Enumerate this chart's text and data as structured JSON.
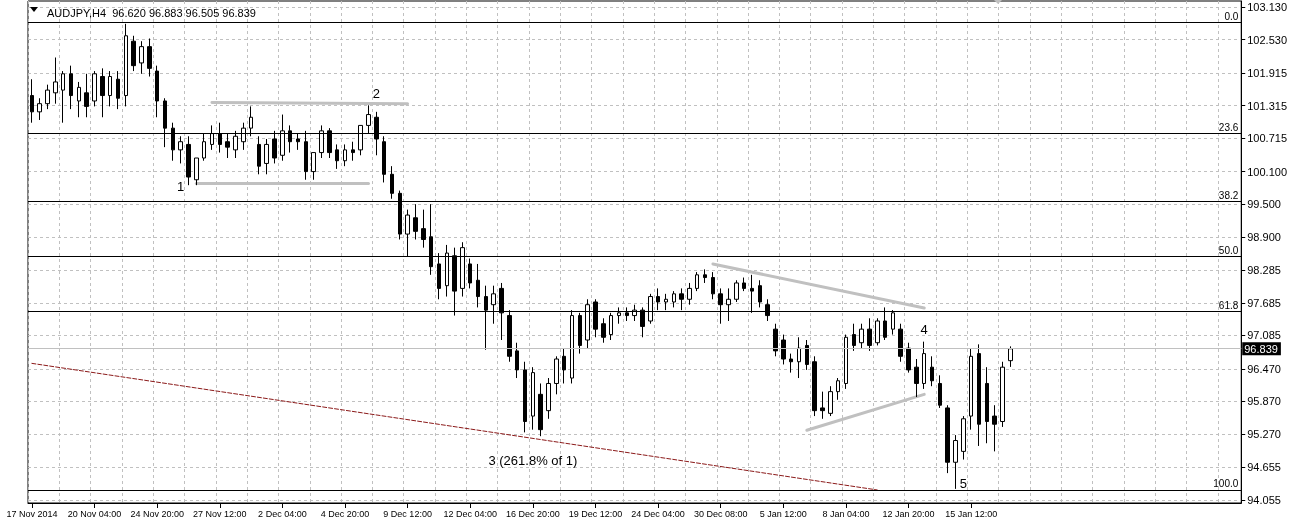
{
  "chart_data": {
    "type": "candlestick",
    "title": "AUDJPY,H4  96.620 96.883 96.505 96.839",
    "color": "#000000",
    "categories": [
      "17 Nov 2014",
      null,
      null,
      null,
      null,
      null,
      null,
      null,
      "20 Nov 04:00",
      null,
      null,
      null,
      null,
      null,
      null,
      null,
      "24 Nov 20:00",
      null,
      null,
      null,
      null,
      null,
      null,
      null,
      "27 Nov 12:00",
      null,
      null,
      null,
      null,
      null,
      null,
      null,
      "2 Dec 04:00",
      null,
      null,
      null,
      null,
      null,
      null,
      null,
      "4 Dec 20:00",
      null,
      null,
      null,
      null,
      null,
      null,
      null,
      "9 Dec 12:00",
      null,
      null,
      null,
      null,
      null,
      null,
      null,
      "12 Dec 04:00",
      null,
      null,
      null,
      null,
      null,
      null,
      null,
      "16 Dec 20:00",
      null,
      null,
      null,
      null,
      null,
      null,
      null,
      "19 Dec 12:00",
      null,
      null,
      null,
      null,
      null,
      null,
      null,
      "24 Dec 04:00",
      null,
      null,
      null,
      null,
      null,
      null,
      null,
      "30 Dec 08:00",
      null,
      null,
      null,
      null,
      null,
      null,
      null,
      "5 Jan 12:00",
      null,
      null,
      null,
      null,
      null,
      null,
      null,
      "8 Jan 04:00",
      null,
      null,
      null,
      null,
      null,
      null,
      null,
      "12 Jan 20:00",
      null,
      null,
      null,
      null,
      null,
      null,
      null,
      "15 Jan 12:00",
      null,
      null,
      null,
      null,
      null,
      null,
      null,
      null,
      null,
      null,
      null,
      null,
      null,
      null,
      null,
      null,
      null,
      null,
      null,
      null,
      null,
      null,
      null,
      null,
      null,
      null,
      null,
      null,
      null,
      null,
      null,
      null,
      null,
      null
    ],
    "ohlc": [
      [
        101.5,
        101.8,
        101.0,
        101.2
      ],
      [
        101.2,
        101.45,
        101.05,
        101.35
      ],
      [
        101.35,
        101.7,
        101.25,
        101.6
      ],
      [
        101.55,
        102.2,
        101.35,
        101.75
      ],
      [
        101.6,
        101.95,
        101.0,
        101.9
      ],
      [
        101.9,
        102.05,
        101.25,
        101.5
      ],
      [
        101.4,
        101.75,
        101.1,
        101.65
      ],
      [
        101.55,
        101.9,
        101.1,
        101.3
      ],
      [
        101.4,
        101.95,
        101.3,
        101.9
      ],
      [
        101.85,
        102.0,
        101.1,
        101.5
      ],
      [
        101.5,
        101.95,
        101.3,
        101.85
      ],
      [
        101.8,
        101.95,
        101.25,
        101.45
      ],
      [
        101.5,
        102.82,
        101.3,
        102.6
      ],
      [
        102.5,
        102.6,
        101.95,
        102.05
      ],
      [
        102.1,
        102.5,
        101.9,
        102.4
      ],
      [
        102.4,
        102.55,
        101.85,
        102.0
      ],
      [
        101.95,
        102.05,
        101.1,
        101.4
      ],
      [
        101.4,
        101.45,
        100.55,
        100.9
      ],
      [
        100.9,
        101.0,
        100.3,
        100.5
      ],
      [
        100.5,
        100.75,
        100.25,
        100.65
      ],
      [
        100.6,
        100.75,
        99.85,
        100.0
      ],
      [
        99.95,
        100.35,
        99.85,
        100.35
      ],
      [
        100.35,
        100.8,
        100.3,
        100.65
      ],
      [
        100.6,
        100.95,
        100.5,
        100.8
      ],
      [
        100.8,
        101.0,
        100.45,
        100.6
      ],
      [
        100.65,
        100.8,
        100.35,
        100.55
      ],
      [
        100.5,
        100.85,
        100.35,
        100.75
      ],
      [
        100.65,
        101.0,
        100.5,
        100.9
      ],
      [
        100.9,
        101.3,
        100.75,
        101.1
      ],
      [
        100.6,
        100.75,
        100.05,
        100.2
      ],
      [
        100.25,
        100.7,
        100.05,
        100.6
      ],
      [
        100.7,
        100.85,
        100.25,
        100.35
      ],
      [
        100.4,
        101.15,
        100.3,
        100.85
      ],
      [
        100.85,
        100.95,
        100.45,
        100.65
      ],
      [
        100.7,
        100.8,
        100.5,
        100.65
      ],
      [
        100.65,
        100.85,
        99.95,
        100.1
      ],
      [
        100.1,
        100.45,
        99.95,
        100.45
      ],
      [
        100.45,
        100.95,
        100.35,
        100.85
      ],
      [
        100.85,
        100.9,
        100.35,
        100.45
      ],
      [
        100.5,
        100.6,
        100.15,
        100.3
      ],
      [
        100.3,
        100.6,
        100.2,
        100.5
      ],
      [
        100.5,
        100.65,
        100.3,
        100.45
      ],
      [
        100.5,
        100.95,
        100.4,
        100.95
      ],
      [
        100.95,
        101.32,
        100.8,
        101.15
      ],
      [
        101.1,
        101.2,
        100.4,
        100.7
      ],
      [
        100.65,
        100.75,
        99.9,
        100.05
      ],
      [
        100.05,
        100.2,
        99.6,
        99.7
      ],
      [
        99.7,
        99.75,
        98.85,
        98.95
      ],
      [
        98.95,
        99.4,
        98.53,
        99.3
      ],
      [
        99.25,
        99.5,
        98.85,
        99.0
      ],
      [
        99.05,
        99.4,
        98.7,
        98.85
      ],
      [
        98.9,
        99.5,
        98.2,
        98.35
      ],
      [
        98.4,
        98.6,
        97.75,
        97.95
      ],
      [
        98.0,
        98.75,
        97.8,
        98.6
      ],
      [
        98.55,
        98.7,
        97.45,
        97.9
      ],
      [
        97.95,
        98.8,
        97.8,
        98.7
      ],
      [
        98.4,
        98.5,
        97.95,
        98.05
      ],
      [
        98.1,
        98.4,
        97.6,
        97.8
      ],
      [
        97.8,
        98.0,
        96.82,
        97.55
      ],
      [
        97.65,
        98.0,
        97.3,
        97.85
      ],
      [
        97.95,
        98.05,
        97.0,
        97.5
      ],
      [
        97.45,
        97.55,
        96.6,
        96.7
      ],
      [
        96.8,
        96.95,
        96.3,
        96.45
      ],
      [
        96.45,
        96.6,
        95.3,
        95.5
      ],
      [
        95.6,
        96.5,
        95.35,
        96.4
      ],
      [
        96.0,
        96.2,
        95.23,
        95.35
      ],
      [
        95.7,
        96.3,
        95.55,
        96.2
      ],
      [
        96.2,
        96.7,
        96.0,
        96.65
      ],
      [
        96.7,
        96.85,
        96.2,
        96.45
      ],
      [
        96.3,
        97.55,
        96.2,
        97.45
      ],
      [
        97.45,
        97.5,
        96.75,
        96.9
      ],
      [
        97.0,
        97.75,
        96.85,
        97.65
      ],
      [
        97.7,
        97.75,
        97.05,
        97.2
      ],
      [
        97.3,
        97.4,
        96.95,
        97.05
      ],
      [
        97.1,
        97.5,
        97.0,
        97.45
      ],
      [
        97.45,
        97.6,
        97.3,
        97.5
      ],
      [
        97.5,
        97.6,
        97.35,
        97.45
      ],
      [
        97.45,
        97.65,
        97.35,
        97.55
      ],
      [
        97.55,
        97.6,
        97.05,
        97.25
      ],
      [
        97.35,
        97.85,
        97.3,
        97.8
      ],
      [
        97.8,
        97.95,
        97.55,
        97.7
      ],
      [
        97.7,
        97.85,
        97.55,
        97.75
      ],
      [
        97.7,
        97.9,
        97.6,
        97.85
      ],
      [
        97.85,
        97.95,
        97.55,
        97.75
      ],
      [
        97.75,
        98.05,
        97.65,
        97.95
      ],
      [
        97.95,
        98.25,
        97.9,
        98.2
      ],
      [
        98.2,
        98.3,
        98.05,
        98.15
      ],
      [
        98.15,
        98.25,
        97.75,
        97.85
      ],
      [
        97.85,
        97.95,
        97.3,
        97.65
      ],
      [
        97.65,
        97.95,
        97.35,
        97.75
      ],
      [
        97.75,
        98.1,
        97.7,
        98.05
      ],
      [
        98.05,
        98.15,
        97.9,
        97.95
      ],
      [
        97.95,
        98.2,
        97.5,
        97.9
      ],
      [
        98.0,
        98.1,
        97.6,
        97.7
      ],
      [
        97.65,
        97.75,
        97.35,
        97.45
      ],
      [
        97.2,
        97.3,
        96.7,
        96.8
      ],
      [
        97.0,
        97.1,
        96.55,
        96.65
      ],
      [
        96.65,
        96.75,
        96.4,
        96.6
      ],
      [
        96.6,
        97.05,
        96.3,
        96.85
      ],
      [
        96.9,
        97.0,
        96.45,
        96.55
      ],
      [
        96.6,
        96.7,
        95.6,
        95.7
      ],
      [
        95.75,
        96.05,
        95.55,
        95.7
      ],
      [
        95.65,
        96.15,
        95.6,
        96.05
      ],
      [
        96.05,
        96.3,
        95.9,
        96.25
      ],
      [
        96.2,
        97.1,
        96.1,
        97.05
      ],
      [
        97.1,
        97.3,
        96.8,
        96.9
      ],
      [
        96.95,
        97.3,
        96.85,
        97.2
      ],
      [
        97.2,
        97.4,
        96.8,
        96.9
      ],
      [
        96.95,
        97.4,
        96.9,
        97.35
      ],
      [
        97.35,
        97.6,
        97.0,
        97.05
      ],
      [
        97.2,
        97.55,
        97.1,
        97.5
      ],
      [
        97.2,
        97.3,
        96.6,
        96.7
      ],
      [
        96.85,
        96.95,
        96.4,
        96.45
      ],
      [
        96.5,
        96.65,
        95.95,
        96.2
      ],
      [
        96.2,
        96.97,
        96.1,
        96.75
      ],
      [
        96.5,
        96.7,
        96.15,
        96.25
      ],
      [
        96.2,
        96.35,
        95.75,
        95.8
      ],
      [
        95.75,
        95.8,
        94.55,
        94.75
      ],
      [
        94.75,
        95.25,
        94.26,
        95.15
      ],
      [
        94.95,
        95.6,
        94.8,
        95.55
      ],
      [
        95.6,
        96.85,
        95.35,
        96.7
      ],
      [
        96.75,
        96.92,
        95.05,
        95.45
      ],
      [
        96.2,
        96.5,
        95.1,
        95.5
      ],
      [
        95.6,
        95.8,
        94.95,
        95.45
      ],
      [
        95.5,
        96.6,
        95.4,
        96.5
      ],
      [
        96.62,
        96.883,
        96.505,
        96.839
      ],
      null,
      null,
      null,
      null,
      null,
      null,
      null,
      null,
      null,
      null,
      null,
      null,
      null,
      null,
      null,
      null,
      null,
      null,
      null,
      null,
      null,
      null,
      null,
      null,
      null,
      null,
      null,
      null,
      null
    ],
    "series": [
      {
        "type": "line",
        "color": "#c0c0c0",
        "line_style": "solid",
        "values": [
          null,
          null,
          null,
          null,
          null,
          null,
          null,
          null,
          null,
          null,
          null,
          null,
          null,
          null,
          null,
          null,
          null,
          null,
          null,
          null,
          null,
          null,
          null,
          101.37,
          null,
          null,
          null,
          null,
          null,
          null,
          null,
          null,
          null,
          null,
          null,
          null,
          null,
          null,
          null,
          null,
          null,
          null,
          null,
          null,
          null,
          null,
          null,
          null,
          101.35,
          null,
          null,
          null,
          null,
          null,
          null,
          null,
          null,
          null,
          null,
          null,
          null,
          null,
          null,
          null,
          null,
          null,
          null,
          null,
          null,
          null,
          null,
          null,
          null,
          null,
          null,
          null,
          null,
          null,
          null,
          null,
          null,
          null,
          null,
          null,
          null,
          null,
          null,
          null,
          null,
          null,
          null,
          null,
          null,
          null,
          null,
          null,
          null,
          null,
          null,
          null,
          null,
          null,
          null,
          null,
          null,
          null,
          null,
          null,
          null,
          null,
          null,
          null,
          null,
          null,
          null,
          null,
          null,
          null,
          null,
          null,
          null,
          null,
          null,
          null,
          null,
          null,
          null,
          null,
          null,
          null,
          null,
          null,
          null,
          null,
          null,
          null,
          null,
          null,
          null,
          null,
          null,
          null,
          null,
          null,
          null,
          null,
          null,
          null,
          null,
          null,
          null,
          null,
          null,
          null,
          null
        ]
      },
      {
        "type": "line",
        "color": "#c0c0c0",
        "line_style": "solid",
        "values": [
          null,
          null,
          null,
          null,
          null,
          null,
          null,
          null,
          null,
          null,
          null,
          null,
          null,
          null,
          null,
          null,
          null,
          null,
          null,
          null,
          null,
          99.88,
          null,
          null,
          null,
          null,
          null,
          null,
          null,
          null,
          null,
          null,
          null,
          null,
          null,
          null,
          null,
          null,
          null,
          null,
          null,
          null,
          null,
          99.88,
          null,
          null,
          null,
          null,
          null,
          null,
          null,
          null,
          null,
          null,
          null,
          null,
          null,
          null,
          null,
          null,
          null,
          null,
          null,
          null,
          null,
          null,
          null,
          null,
          null,
          null,
          null,
          null,
          null,
          null,
          null,
          null,
          null,
          null,
          null,
          null,
          null,
          null,
          null,
          null,
          null,
          null,
          null,
          null,
          null,
          null,
          null,
          null,
          null,
          null,
          null,
          null,
          null,
          null,
          null,
          null,
          null,
          null,
          null,
          null,
          null,
          null,
          null,
          null,
          null,
          null,
          null,
          null,
          null,
          null,
          null,
          null,
          null,
          null,
          null,
          null,
          null,
          null,
          null,
          null,
          null,
          null,
          null,
          null,
          null,
          null,
          null,
          null,
          null,
          null,
          null,
          null,
          null,
          null,
          null,
          null,
          null,
          null,
          null,
          null,
          null,
          null,
          null,
          null,
          null,
          null,
          null,
          null,
          null,
          null,
          null
        ]
      },
      {
        "type": "line",
        "color": "#c0c0c0",
        "line_style": "solid",
        "values": [
          null,
          null,
          null,
          null,
          null,
          null,
          null,
          null,
          null,
          null,
          null,
          null,
          null,
          null,
          null,
          null,
          null,
          null,
          null,
          null,
          null,
          null,
          null,
          null,
          null,
          null,
          null,
          null,
          null,
          null,
          null,
          null,
          null,
          null,
          null,
          null,
          null,
          null,
          null,
          null,
          null,
          null,
          null,
          null,
          null,
          null,
          null,
          null,
          null,
          null,
          null,
          null,
          null,
          null,
          null,
          null,
          null,
          null,
          null,
          null,
          null,
          null,
          null,
          null,
          null,
          null,
          null,
          null,
          null,
          null,
          null,
          null,
          null,
          null,
          null,
          null,
          null,
          null,
          null,
          null,
          null,
          null,
          null,
          null,
          null,
          null,
          null,
          98.4,
          null,
          null,
          null,
          null,
          null,
          null,
          null,
          null,
          null,
          null,
          null,
          null,
          null,
          null,
          null,
          null,
          null,
          null,
          null,
          null,
          null,
          null,
          null,
          null,
          null,
          null,
          97.59,
          null,
          null,
          null,
          null,
          null,
          null,
          null,
          null,
          null,
          null,
          null,
          null,
          null,
          null,
          null,
          null,
          null,
          null,
          null,
          null,
          null,
          null,
          null,
          null,
          null,
          null,
          null,
          null,
          null,
          null,
          null,
          null,
          null,
          null,
          null,
          null,
          null,
          null,
          null,
          null
        ]
      },
      {
        "type": "line",
        "color": "#c0c0c0",
        "line_style": "solid",
        "values": [
          null,
          null,
          null,
          null,
          null,
          null,
          null,
          null,
          null,
          null,
          null,
          null,
          null,
          null,
          null,
          null,
          null,
          null,
          null,
          null,
          null,
          null,
          null,
          null,
          null,
          null,
          null,
          null,
          null,
          null,
          null,
          null,
          null,
          null,
          null,
          null,
          null,
          null,
          null,
          null,
          null,
          null,
          null,
          null,
          null,
          null,
          null,
          null,
          null,
          null,
          null,
          null,
          null,
          null,
          null,
          null,
          null,
          null,
          null,
          null,
          null,
          null,
          null,
          null,
          null,
          null,
          null,
          null,
          null,
          null,
          null,
          null,
          null,
          null,
          null,
          null,
          null,
          null,
          null,
          null,
          null,
          null,
          null,
          null,
          null,
          null,
          null,
          null,
          null,
          null,
          null,
          null,
          null,
          null,
          null,
          null,
          null,
          null,
          null,
          95.34,
          null,
          null,
          null,
          null,
          null,
          null,
          null,
          null,
          null,
          null,
          null,
          null,
          null,
          null,
          96.0,
          null,
          null,
          null,
          null,
          null,
          null,
          null,
          null,
          null,
          null,
          null,
          null,
          null,
          null,
          null,
          null,
          null,
          null,
          null,
          null,
          null,
          null,
          null,
          null,
          null,
          null,
          null,
          null,
          null,
          null,
          null,
          null,
          null,
          null,
          null,
          null,
          null,
          null,
          null,
          null
        ]
      },
      {
        "type": "line",
        "color": "#8b1a1a",
        "line_style": "dashed",
        "values": [
          96.57,
          null,
          null,
          null,
          null,
          null,
          null,
          null,
          null,
          null,
          null,
          null,
          null,
          null,
          null,
          null,
          null,
          null,
          null,
          null,
          null,
          null,
          null,
          null,
          null,
          null,
          null,
          null,
          null,
          null,
          null,
          null,
          null,
          null,
          null,
          null,
          null,
          null,
          null,
          null,
          null,
          null,
          null,
          null,
          null,
          null,
          null,
          null,
          null,
          null,
          null,
          null,
          null,
          null,
          null,
          null,
          null,
          null,
          null,
          null,
          null,
          null,
          null,
          null,
          null,
          null,
          null,
          null,
          null,
          null,
          null,
          null,
          null,
          null,
          null,
          null,
          null,
          null,
          null,
          null,
          null,
          null,
          null,
          null,
          null,
          null,
          null,
          null,
          null,
          null,
          null,
          null,
          null,
          null,
          null,
          null,
          null,
          null,
          null,
          null,
          null,
          null,
          null,
          null,
          null,
          null,
          null,
          null,
          94.24,
          null,
          null,
          null,
          null,
          null,
          null,
          null,
          null,
          null,
          null,
          null,
          null,
          null,
          null,
          null,
          null,
          null,
          null,
          null,
          null,
          null,
          null,
          null,
          null,
          null,
          null,
          null,
          null,
          null,
          null,
          null,
          null,
          null,
          null,
          null,
          null,
          null,
          null,
          null,
          null,
          null,
          null,
          null,
          null,
          null,
          null
        ]
      }
    ],
    "ylim": [
      94.0,
      103.24
    ],
    "yticks": [
      {
        "value": 94.055,
        "label": "94.055"
      },
      {
        "value": 94.655,
        "label": "94.655"
      },
      {
        "value": 95.27,
        "label": "95.270"
      },
      {
        "value": 95.87,
        "label": "95.870"
      },
      {
        "value": 96.47,
        "label": "96.470"
      },
      {
        "value": 97.085,
        "label": "97.085"
      },
      {
        "value": 97.685,
        "label": "97.685"
      },
      {
        "value": 98.285,
        "label": "98.285"
      },
      {
        "value": 98.9,
        "label": "98.900"
      },
      {
        "value": 99.5,
        "label": "99.500"
      },
      {
        "value": 100.1,
        "label": "100.100"
      },
      {
        "value": 100.715,
        "label": "100.715"
      },
      {
        "value": 101.315,
        "label": "101.315"
      },
      {
        "value": 101.915,
        "label": "101.915"
      },
      {
        "value": 102.53,
        "label": "102.530"
      },
      {
        "value": 103.13,
        "label": "103.130"
      }
    ],
    "ref_lines": [
      {
        "axis": "y",
        "value": 102.84,
        "color": "#000000"
      },
      {
        "axis": "y",
        "value": 100.81,
        "color": "#000000"
      },
      {
        "axis": "y",
        "value": 99.555,
        "color": "#000000"
      },
      {
        "axis": "y",
        "value": 98.54,
        "color": "#000000"
      },
      {
        "axis": "y",
        "value": 97.525,
        "color": "#000000"
      },
      {
        "axis": "y",
        "value": 94.24,
        "color": "#000000"
      },
      {
        "axis": "y",
        "value": 96.839,
        "color": "#c0c0c0",
        "label": "96.839"
      }
    ],
    "annotations": [
      {
        "text": "0.0",
        "y": 102.84
      },
      {
        "text": "23.6",
        "y": 100.81
      },
      {
        "text": "38.2",
        "y": 99.555
      },
      {
        "text": "50.0",
        "y": 98.54
      },
      {
        "text": "61.8",
        "y": 97.525
      },
      {
        "text": "100.0",
        "y": 94.24
      },
      "1",
      "2",
      "3 (261.8% of 1)",
      "4",
      "5"
    ],
    "grid": true,
    "marker": "none"
  }
}
